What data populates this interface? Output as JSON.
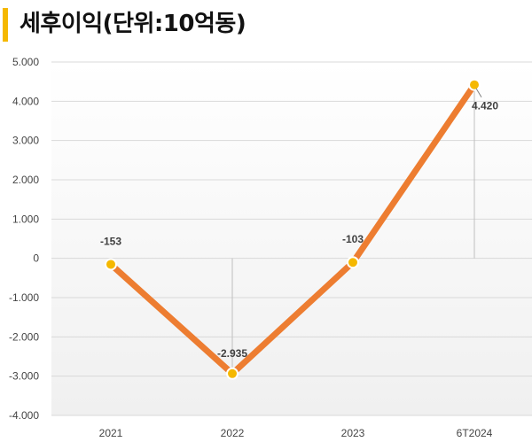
{
  "title": "세후이익(단위:10억동)",
  "colors": {
    "accent_bar": "#f5b800",
    "line": "#ed7d31",
    "marker": "#f5b800",
    "grid": "#d9d9d9"
  },
  "chart_data": {
    "type": "line",
    "title": "세후이익(단위:10억동)",
    "categories": [
      "2021",
      "2022",
      "2023",
      "6T2024"
    ],
    "series": [
      {
        "values": [
          -153,
          -2935,
          -103,
          4420
        ]
      }
    ],
    "data_labels": [
      "-153",
      "-2.935",
      "-103",
      "4.420"
    ],
    "y_ticks": [
      "5.000",
      "4.000",
      "3.000",
      "2.000",
      "1.000",
      "0",
      "-1.000",
      "-2.000",
      "-3.000",
      "-4.000"
    ],
    "ylim": [
      -4000,
      5000
    ],
    "grid": true,
    "legend": "none"
  }
}
